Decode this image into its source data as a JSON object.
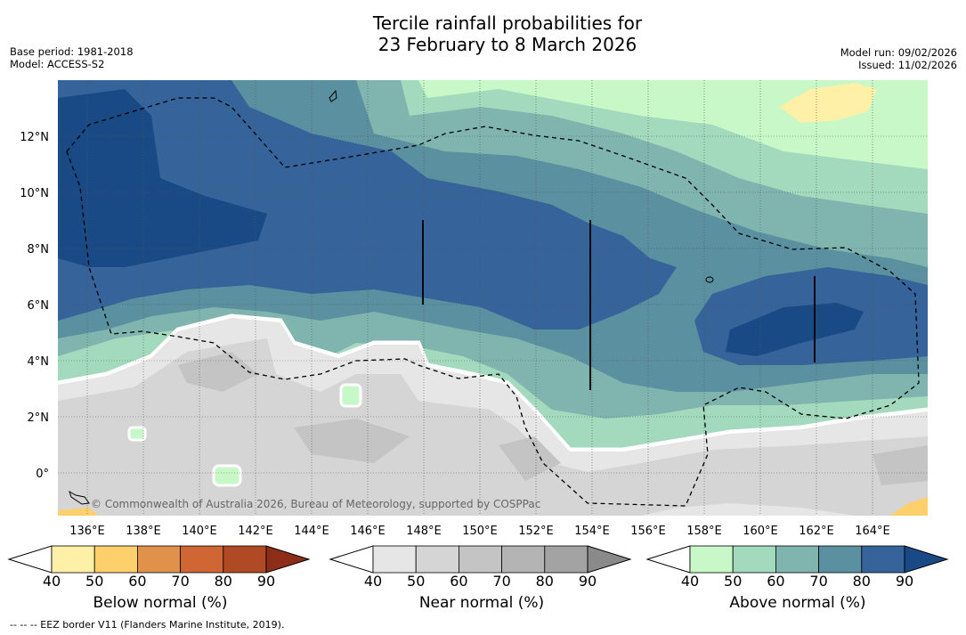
{
  "title": {
    "line1": "Tercile rainfall probabilities for",
    "line2": "23 February to 8 March 2026"
  },
  "meta": {
    "base_period": "Base period: 1981-2018",
    "model": "Model: ACCESS-S2",
    "model_run": "Model run: 09/02/2026",
    "issued": "Issued: 11/02/2026"
  },
  "map": {
    "lon_labels": [
      "136°E",
      "138°E",
      "140°E",
      "142°E",
      "144°E",
      "146°E",
      "148°E",
      "150°E",
      "152°E",
      "154°E",
      "156°E",
      "158°E",
      "160°E",
      "162°E",
      "164°E"
    ],
    "lat_labels": [
      "12°N",
      "10°N",
      "8°N",
      "6°N",
      "4°N",
      "2°N",
      "0°"
    ],
    "credit": "© Commonwealth of Australia 2026, Bureau of Meteorology, supported by COSPPac"
  },
  "legend": {
    "below": {
      "label": "Below normal (%)",
      "ticks": [
        "40",
        "50",
        "60",
        "70",
        "80",
        "90"
      ],
      "colors": [
        "#fff0a8",
        "#fdd06c",
        "#e0924a",
        "#cf6634",
        "#b04a24",
        "#8e2e18"
      ]
    },
    "near": {
      "label": "Near normal (%)",
      "ticks": [
        "40",
        "50",
        "60",
        "70",
        "80",
        "90"
      ],
      "colors": [
        "#e6e6e6",
        "#d5d5d5",
        "#c4c4c4",
        "#b4b4b4",
        "#a3a3a3",
        "#8a8a8a"
      ]
    },
    "above": {
      "label": "Above normal (%)",
      "ticks": [
        "40",
        "50",
        "60",
        "70",
        "80",
        "90"
      ],
      "colors": [
        "#c8f7c8",
        "#a3d9bc",
        "#7fb5ae",
        "#5a90a0",
        "#35639a",
        "#1a4a85"
      ]
    }
  },
  "footnote": "--  --  -- EEZ border V11 (Flanders Marine Institute, 2019)."
}
